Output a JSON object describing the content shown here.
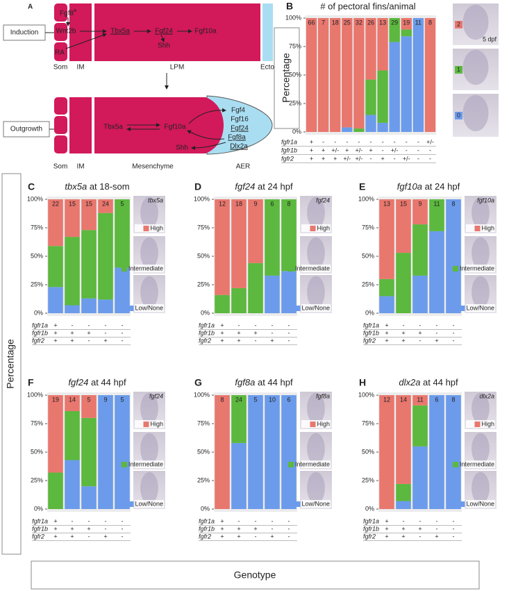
{
  "diagram": {
    "panel": "A",
    "stages": [
      "Induction",
      "Outgrowth"
    ],
    "top": {
      "tissues": [
        "Som",
        "IM",
        "LPM",
        "Ecto"
      ],
      "genes": [
        "Fgf8",
        "Wnt2b",
        "RA",
        "Tbx5a",
        "Fgf24",
        "Fgf10a",
        "Shh"
      ],
      "fgf8_sup": "a"
    },
    "bottom": {
      "tissues": [
        "Som",
        "IM",
        "Mesenchyme",
        "AER"
      ],
      "genes": [
        "Tbx5a",
        "Fgf10a",
        "Fgf4",
        "Fgf16",
        "Fgf24",
        "Fgf8a",
        "Dlx2a",
        "Shh"
      ]
    }
  },
  "figure": {
    "y_label": "Percentage",
    "x_label": "Genotype"
  },
  "chart_data": [
    {
      "type": "stacked_bar",
      "panel": "B",
      "title": "# of pectoral fins/animal",
      "y_label": "Percentage",
      "image_label": "5 dpf",
      "counts": [
        66,
        7,
        18,
        25,
        32,
        26,
        13,
        29,
        19,
        11,
        8
      ],
      "series": [
        {
          "name": "0",
          "color": "#6b9bea",
          "values": [
            0,
            0,
            0,
            4,
            0,
            15,
            8,
            79,
            84,
            100,
            0
          ]
        },
        {
          "name": "1",
          "color": "#5cb83e",
          "values": [
            0,
            0,
            0,
            0,
            3,
            31,
            46,
            21,
            6,
            0,
            0
          ]
        },
        {
          "name": "2",
          "color": "#e8776e",
          "values": [
            100,
            100,
            100,
            96,
            97,
            54,
            46,
            0,
            10,
            0,
            100
          ]
        }
      ],
      "ylim": [
        0,
        100
      ],
      "yticks": [
        {
          "value": 0,
          "label": "0%"
        },
        {
          "value": 25,
          "label": "25%"
        },
        {
          "value": 50,
          "label": "50%"
        },
        {
          "value": 75,
          "label": "75%"
        },
        {
          "value": 100,
          "label": "100%"
        }
      ],
      "genotype": [
        {
          "name": "fgfr1a",
          "values": [
            "+",
            "-",
            "-",
            "-",
            "-",
            "-",
            "-",
            "-",
            "-",
            "-",
            "+/-"
          ]
        },
        {
          "name": "fgfr1b",
          "values": [
            "+",
            "+",
            "+/-",
            "+",
            "+/-",
            "+",
            "-",
            "+/-",
            "-",
            "-",
            "-"
          ]
        },
        {
          "name": "fgfr2",
          "values": [
            "+",
            "+",
            "+",
            "+/-",
            "+/-",
            "-",
            "+",
            "-",
            "+/-",
            "-",
            "-"
          ]
        }
      ]
    },
    {
      "type": "stacked_bar",
      "panel": "C",
      "title_gene": "tbx5a",
      "title_stage": "at 18-som",
      "image_label": "tbx5a",
      "counts": [
        22,
        15,
        15,
        24,
        5
      ],
      "series": [
        {
          "name": "Low/None",
          "color": "#6b9bea",
          "values": [
            23,
            7,
            13,
            12,
            40
          ]
        },
        {
          "name": "Intermediate",
          "color": "#5cb83e",
          "values": [
            36,
            60,
            60,
            76,
            60
          ]
        },
        {
          "name": "High",
          "color": "#e8776e",
          "values": [
            41,
            33,
            27,
            12,
            0
          ]
        }
      ],
      "ylim": [
        0,
        100
      ],
      "yticks": [
        {
          "value": 0,
          "label": "0%"
        },
        {
          "value": 25,
          "label": "25%"
        },
        {
          "value": 50,
          "label": "50%"
        },
        {
          "value": 75,
          "label": "75%"
        },
        {
          "value": 100,
          "label": "100%"
        }
      ],
      "genotype": [
        {
          "name": "fgfr1a",
          "values": [
            "+",
            "-",
            "-",
            "-",
            "-"
          ]
        },
        {
          "name": "fgfr1b",
          "values": [
            "+",
            "+",
            "+",
            "-",
            "-"
          ]
        },
        {
          "name": "fgfr2",
          "values": [
            "+",
            "+",
            "-",
            "+",
            "-"
          ]
        }
      ]
    },
    {
      "type": "stacked_bar",
      "panel": "D",
      "title_gene": "fgf24",
      "title_stage": "at 24 hpf",
      "image_label": "fgf24",
      "counts": [
        12,
        18,
        9,
        6,
        8
      ],
      "series": [
        {
          "name": "Low/None",
          "color": "#6b9bea",
          "values": [
            0,
            0,
            0,
            33,
            37
          ]
        },
        {
          "name": "Intermediate",
          "color": "#5cb83e",
          "values": [
            16,
            22,
            44,
            67,
            63
          ]
        },
        {
          "name": "High",
          "color": "#e8776e",
          "values": [
            84,
            78,
            56,
            0,
            0
          ]
        }
      ],
      "ylim": [
        0,
        100
      ],
      "yticks": [
        {
          "value": 0,
          "label": "0%"
        },
        {
          "value": 25,
          "label": "25%"
        },
        {
          "value": 50,
          "label": "50%"
        },
        {
          "value": 75,
          "label": "75%"
        },
        {
          "value": 100,
          "label": "100%"
        }
      ],
      "genotype": [
        {
          "name": "fgfr1a",
          "values": [
            "+",
            "-",
            "-",
            "-",
            "-"
          ]
        },
        {
          "name": "fgfr1b",
          "values": [
            "+",
            "+",
            "+",
            "-",
            "-"
          ]
        },
        {
          "name": "fgfr2",
          "values": [
            "+",
            "+",
            "-",
            "+",
            "-"
          ]
        }
      ]
    },
    {
      "type": "stacked_bar",
      "panel": "E",
      "title_gene": "fgf10a",
      "title_stage": "at 24 hpf",
      "image_label": "fgf10a",
      "counts": [
        13,
        15,
        9,
        11,
        8
      ],
      "series": [
        {
          "name": "Low/None",
          "color": "#6b9bea",
          "values": [
            15,
            0,
            33,
            72,
            100
          ]
        },
        {
          "name": "Intermediate",
          "color": "#5cb83e",
          "values": [
            15,
            53,
            45,
            28,
            0
          ]
        },
        {
          "name": "High",
          "color": "#e8776e",
          "values": [
            70,
            47,
            22,
            0,
            0
          ]
        }
      ],
      "ylim": [
        0,
        100
      ],
      "yticks": [
        {
          "value": 0,
          "label": "0%"
        },
        {
          "value": 25,
          "label": "25%"
        },
        {
          "value": 50,
          "label": "50%"
        },
        {
          "value": 75,
          "label": "75%"
        },
        {
          "value": 100,
          "label": "100%"
        }
      ],
      "genotype": [
        {
          "name": "fgfr1a",
          "values": [
            "+",
            "-",
            "-",
            "-",
            "-"
          ]
        },
        {
          "name": "fgfr1b",
          "values": [
            "+",
            "+",
            "+",
            "-",
            "-"
          ]
        },
        {
          "name": "fgfr2",
          "values": [
            "+",
            "+",
            "-",
            "+",
            "-"
          ]
        }
      ]
    },
    {
      "type": "stacked_bar",
      "panel": "F",
      "title_gene": "fgf24",
      "title_stage": "at 44 hpf",
      "image_label": "fgf24",
      "counts": [
        19,
        14,
        5,
        9,
        5
      ],
      "series": [
        {
          "name": "Low/None",
          "color": "#6b9bea",
          "values": [
            0,
            43,
            20,
            100,
            100
          ]
        },
        {
          "name": "Intermediate",
          "color": "#5cb83e",
          "values": [
            32,
            43,
            60,
            0,
            0
          ]
        },
        {
          "name": "High",
          "color": "#e8776e",
          "values": [
            68,
            14,
            20,
            0,
            0
          ]
        }
      ],
      "ylim": [
        0,
        100
      ],
      "yticks": [
        {
          "value": 0,
          "label": "0%"
        },
        {
          "value": 25,
          "label": "25%"
        },
        {
          "value": 50,
          "label": "50%"
        },
        {
          "value": 75,
          "label": "75%"
        },
        {
          "value": 100,
          "label": "100%"
        }
      ],
      "genotype": [
        {
          "name": "fgfr1a",
          "values": [
            "+",
            "-",
            "-",
            "-",
            "-"
          ]
        },
        {
          "name": "fgfr1b",
          "values": [
            "+",
            "+",
            "+",
            "-",
            "-"
          ]
        },
        {
          "name": "fgfr2",
          "values": [
            "+",
            "+",
            "-",
            "+",
            "-"
          ]
        }
      ]
    },
    {
      "type": "stacked_bar",
      "panel": "G",
      "title_gene": "fgf8a",
      "title_stage": "at 44 hpf",
      "image_label": "fgf8a",
      "counts": [
        8,
        24,
        5,
        10,
        6
      ],
      "series": [
        {
          "name": "Low/None",
          "color": "#6b9bea",
          "values": [
            0,
            58,
            100,
            100,
            100
          ]
        },
        {
          "name": "Intermediate",
          "color": "#5cb83e",
          "values": [
            0,
            42,
            0,
            0,
            0
          ]
        },
        {
          "name": "High",
          "color": "#e8776e",
          "values": [
            100,
            0,
            0,
            0,
            0
          ]
        }
      ],
      "ylim": [
        0,
        100
      ],
      "yticks": [
        {
          "value": 0,
          "label": "0%"
        },
        {
          "value": 25,
          "label": "25%"
        },
        {
          "value": 50,
          "label": "50%"
        },
        {
          "value": 75,
          "label": "75%"
        },
        {
          "value": 100,
          "label": "100%"
        }
      ],
      "genotype": [
        {
          "name": "fgfr1a",
          "values": [
            "+",
            "-",
            "-",
            "-",
            "-"
          ]
        },
        {
          "name": "fgfr1b",
          "values": [
            "+",
            "+",
            "+",
            "-",
            "-"
          ]
        },
        {
          "name": "fgfr2",
          "values": [
            "+",
            "+",
            "-",
            "+",
            "-"
          ]
        }
      ]
    },
    {
      "type": "stacked_bar",
      "panel": "H",
      "title_gene": "dlx2a",
      "title_stage": "at 44 hpf",
      "image_label": "dlx2a",
      "counts": [
        12,
        14,
        11,
        6,
        8
      ],
      "series": [
        {
          "name": "Low/None",
          "color": "#6b9bea",
          "values": [
            0,
            7,
            55,
            100,
            100
          ]
        },
        {
          "name": "Intermediate",
          "color": "#5cb83e",
          "values": [
            0,
            15,
            36,
            0,
            0
          ]
        },
        {
          "name": "High",
          "color": "#e8776e",
          "values": [
            100,
            78,
            9,
            0,
            0
          ]
        }
      ],
      "ylim": [
        0,
        100
      ],
      "yticks": [
        {
          "value": 0,
          "label": "0%"
        },
        {
          "value": 25,
          "label": "25%"
        },
        {
          "value": 50,
          "label": "50%"
        },
        {
          "value": 75,
          "label": "75%"
        },
        {
          "value": 100,
          "label": "100%"
        }
      ],
      "genotype": [
        {
          "name": "fgfr1a",
          "values": [
            "+",
            "-",
            "-",
            "-",
            "-"
          ]
        },
        {
          "name": "fgfr1b",
          "values": [
            "+",
            "+",
            "+",
            "-",
            "-"
          ]
        },
        {
          "name": "fgfr2",
          "values": [
            "+",
            "+",
            "-",
            "+",
            "-"
          ]
        }
      ]
    }
  ]
}
